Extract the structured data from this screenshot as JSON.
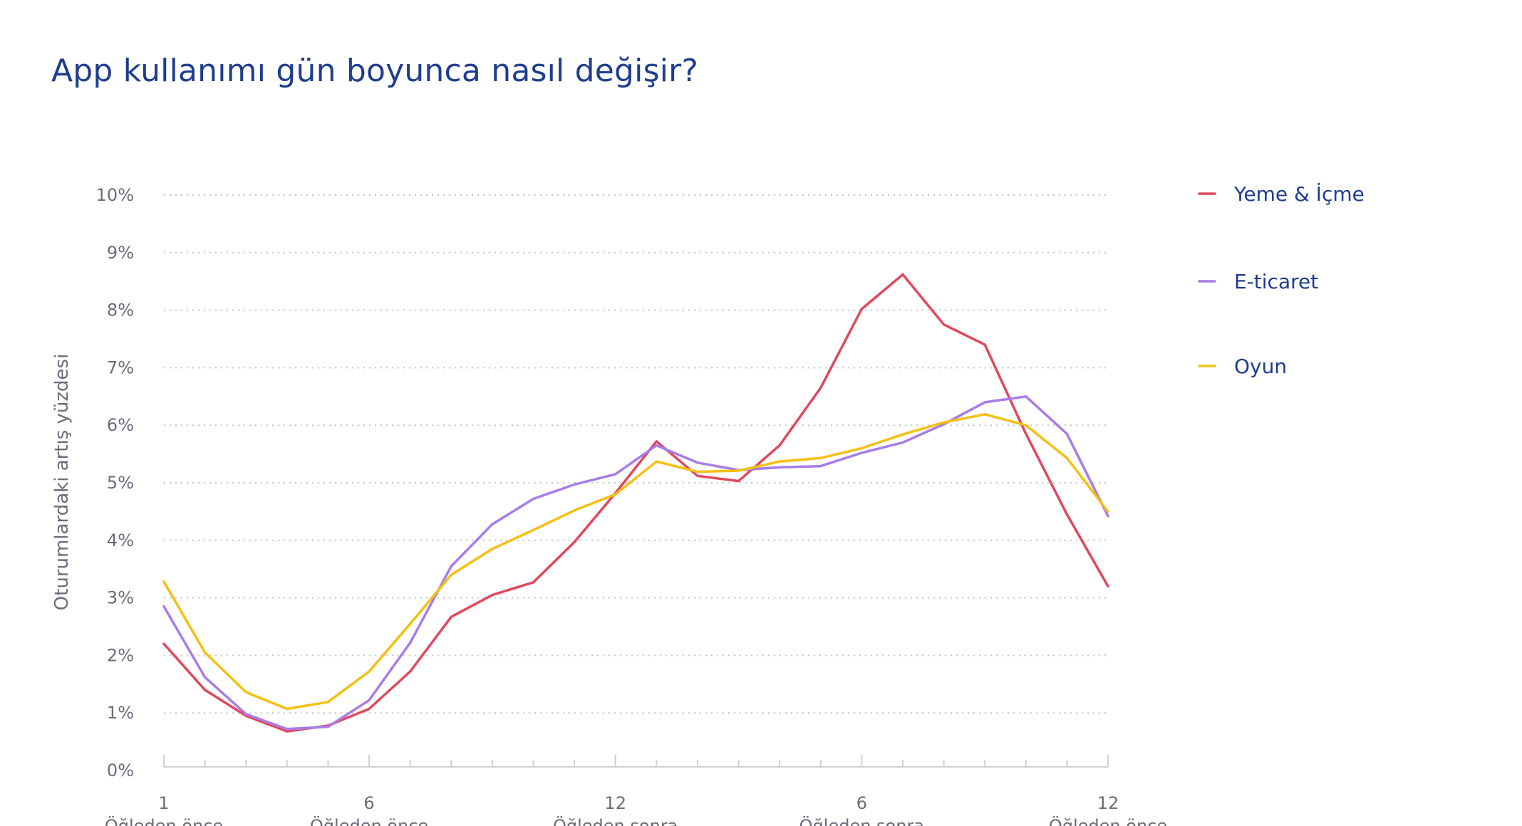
{
  "page": {
    "title": "App kullanımı gün boyunca nasıl değişir?"
  },
  "chart_data": {
    "type": "line",
    "title": "App kullanımı gün boyunca nasıl değişir?",
    "ylabel": "Oturumlardaki artış yüzdesi",
    "xlabel": "",
    "ylim": [
      0,
      10
    ],
    "y_unit": "%",
    "y_ticks": [
      "0%",
      "1%",
      "2%",
      "3%",
      "4%",
      "5%",
      "6%",
      "7%",
      "8%",
      "9%",
      "10%"
    ],
    "grid": true,
    "legend_position": "right",
    "x": [
      1,
      2,
      3,
      4,
      5,
      6,
      7,
      8,
      9,
      10,
      11,
      12,
      13,
      14,
      15,
      16,
      17,
      18,
      19,
      20,
      21,
      22,
      23,
      24
    ],
    "x_ticks": [
      {
        "x": 1,
        "value": "1",
        "period": "Öğleden önce"
      },
      {
        "x": 6,
        "value": "6",
        "period": "Öğleden önce"
      },
      {
        "x": 12,
        "value": "12",
        "period": "Öğleden sonra"
      },
      {
        "x": 18,
        "value": "6",
        "period": "Öğleden sonra"
      },
      {
        "x": 24,
        "value": "12",
        "period": "Öğleden önce"
      }
    ],
    "series": [
      {
        "name": "Yeme & İçme",
        "color": "#e0485e",
        "values": [
          2.2,
          1.4,
          0.95,
          0.68,
          0.78,
          1.07,
          1.72,
          2.67,
          3.05,
          3.27,
          3.97,
          4.82,
          5.72,
          5.12,
          5.03,
          5.65,
          6.65,
          8.02,
          8.62,
          7.75,
          7.4,
          5.85,
          4.45,
          3.2
        ]
      },
      {
        "name": "E-ticaret",
        "color": "#a77de8",
        "values": [
          2.85,
          1.62,
          0.98,
          0.72,
          0.76,
          1.22,
          2.22,
          3.55,
          4.28,
          4.72,
          4.97,
          5.15,
          5.65,
          5.35,
          5.22,
          5.27,
          5.29,
          5.52,
          5.7,
          6.02,
          6.4,
          6.5,
          5.85,
          4.42
        ]
      },
      {
        "name": "Oyun",
        "color": "#f5c012",
        "values": [
          3.28,
          2.05,
          1.36,
          1.07,
          1.19,
          1.72,
          2.55,
          3.4,
          3.85,
          4.18,
          4.52,
          4.8,
          5.37,
          5.19,
          5.21,
          5.37,
          5.43,
          5.6,
          5.84,
          6.05,
          6.19,
          6.0,
          5.43,
          4.5
        ]
      }
    ]
  }
}
